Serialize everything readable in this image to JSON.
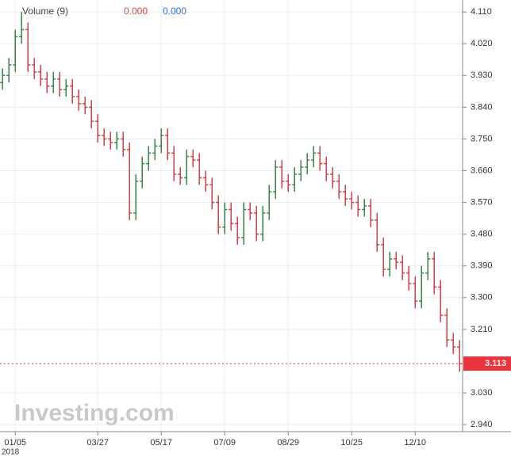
{
  "chart_data": {
    "type": "ohlc",
    "legend_title": "Volume (9)",
    "legend_values": [
      "0.000",
      "0.000"
    ],
    "legend_colors": [
      "#e0443a",
      "#2f6bd8"
    ],
    "watermark": "Investing.com",
    "x_year_label": "2018",
    "up_color": "#2e8b3e",
    "down_color": "#e8343a",
    "xlim": [
      -0.4,
      72.1
    ],
    "xticks": [
      {
        "value": 2,
        "label": "01/05"
      },
      {
        "value": 15,
        "label": "03/27"
      },
      {
        "value": 25,
        "label": "05/17"
      },
      {
        "value": 35,
        "label": "07/09"
      },
      {
        "value": 45,
        "label": "08/29"
      },
      {
        "value": 55,
        "label": "10/25"
      },
      {
        "value": 65,
        "label": "12/10"
      }
    ],
    "ylim": [
      2.92,
      4.144
    ],
    "yticks": [
      {
        "value": 4.11,
        "label": "4.110"
      },
      {
        "value": 4.02,
        "label": "4.020"
      },
      {
        "value": 3.93,
        "label": "3.930"
      },
      {
        "value": 3.84,
        "label": "3.840"
      },
      {
        "value": 3.75,
        "label": "3.750"
      },
      {
        "value": 3.66,
        "label": "3.660"
      },
      {
        "value": 3.57,
        "label": "3.570"
      },
      {
        "value": 3.48,
        "label": "3.480"
      },
      {
        "value": 3.39,
        "label": "3.390"
      },
      {
        "value": 3.3,
        "label": "3.300"
      },
      {
        "value": 3.21,
        "label": "3.210"
      },
      {
        "value": 3.03,
        "label": "3.030"
      },
      {
        "value": 2.94,
        "label": "2.940"
      }
    ],
    "grid": true,
    "last_price": 3.113,
    "last_price_color": "#e8343a",
    "open": [
      3.91,
      3.93,
      3.96,
      4.04,
      4.06,
      3.96,
      3.94,
      3.92,
      3.9,
      3.92,
      3.89,
      3.9,
      3.87,
      3.85,
      3.84,
      3.8,
      3.76,
      3.75,
      3.74,
      3.75,
      3.72,
      3.54,
      3.63,
      3.68,
      3.71,
      3.73,
      3.76,
      3.71,
      3.65,
      3.64,
      3.7,
      3.69,
      3.64,
      3.62,
      3.57,
      3.5,
      3.55,
      3.51,
      3.47,
      3.55,
      3.54,
      3.48,
      3.54,
      3.6,
      3.67,
      3.63,
      3.62,
      3.65,
      3.67,
      3.69,
      3.71,
      3.68,
      3.65,
      3.63,
      3.6,
      3.58,
      3.57,
      3.55,
      3.56,
      3.52,
      3.45,
      3.38,
      3.41,
      3.4,
      3.37,
      3.34,
      3.29,
      3.37,
      3.41,
      3.33,
      3.25,
      3.18,
      3.16
    ],
    "high": [
      3.95,
      3.98,
      4.06,
      4.11,
      4.08,
      3.98,
      3.96,
      3.94,
      3.94,
      3.94,
      3.92,
      3.92,
      3.89,
      3.87,
      3.86,
      3.82,
      3.78,
      3.77,
      3.77,
      3.77,
      3.74,
      3.65,
      3.7,
      3.73,
      3.75,
      3.78,
      3.78,
      3.73,
      3.67,
      3.72,
      3.72,
      3.71,
      3.66,
      3.64,
      3.59,
      3.57,
      3.57,
      3.53,
      3.57,
      3.57,
      3.56,
      3.56,
      3.62,
      3.69,
      3.69,
      3.65,
      3.67,
      3.69,
      3.71,
      3.73,
      3.73,
      3.7,
      3.67,
      3.65,
      3.62,
      3.6,
      3.59,
      3.58,
      3.58,
      3.54,
      3.47,
      3.43,
      3.43,
      3.42,
      3.39,
      3.36,
      3.39,
      3.43,
      3.43,
      3.35,
      3.27,
      3.2,
      3.18
    ],
    "low": [
      3.89,
      3.91,
      3.94,
      4.02,
      3.94,
      3.92,
      3.9,
      3.88,
      3.88,
      3.87,
      3.87,
      3.85,
      3.83,
      3.82,
      3.78,
      3.74,
      3.73,
      3.72,
      3.72,
      3.7,
      3.52,
      3.52,
      3.61,
      3.66,
      3.69,
      3.71,
      3.69,
      3.63,
      3.62,
      3.62,
      3.67,
      3.62,
      3.6,
      3.55,
      3.48,
      3.48,
      3.49,
      3.45,
      3.45,
      3.52,
      3.46,
      3.46,
      3.52,
      3.58,
      3.61,
      3.6,
      3.6,
      3.63,
      3.65,
      3.67,
      3.66,
      3.63,
      3.61,
      3.58,
      3.56,
      3.55,
      3.53,
      3.53,
      3.5,
      3.43,
      3.36,
      3.36,
      3.38,
      3.35,
      3.32,
      3.27,
      3.27,
      3.35,
      3.31,
      3.23,
      3.16,
      3.14,
      3.09
    ],
    "close": [
      3.93,
      3.96,
      4.04,
      4.06,
      3.96,
      3.94,
      3.92,
      3.9,
      3.92,
      3.89,
      3.9,
      3.87,
      3.85,
      3.84,
      3.8,
      3.76,
      3.75,
      3.74,
      3.75,
      3.72,
      3.54,
      3.63,
      3.68,
      3.71,
      3.73,
      3.76,
      3.71,
      3.65,
      3.64,
      3.7,
      3.69,
      3.64,
      3.62,
      3.57,
      3.5,
      3.55,
      3.51,
      3.47,
      3.55,
      3.54,
      3.48,
      3.54,
      3.6,
      3.67,
      3.63,
      3.62,
      3.65,
      3.67,
      3.69,
      3.71,
      3.68,
      3.65,
      3.63,
      3.6,
      3.58,
      3.57,
      3.55,
      3.56,
      3.52,
      3.45,
      3.38,
      3.41,
      3.4,
      3.37,
      3.34,
      3.29,
      3.37,
      3.41,
      3.33,
      3.25,
      3.18,
      3.16,
      3.113
    ]
  }
}
